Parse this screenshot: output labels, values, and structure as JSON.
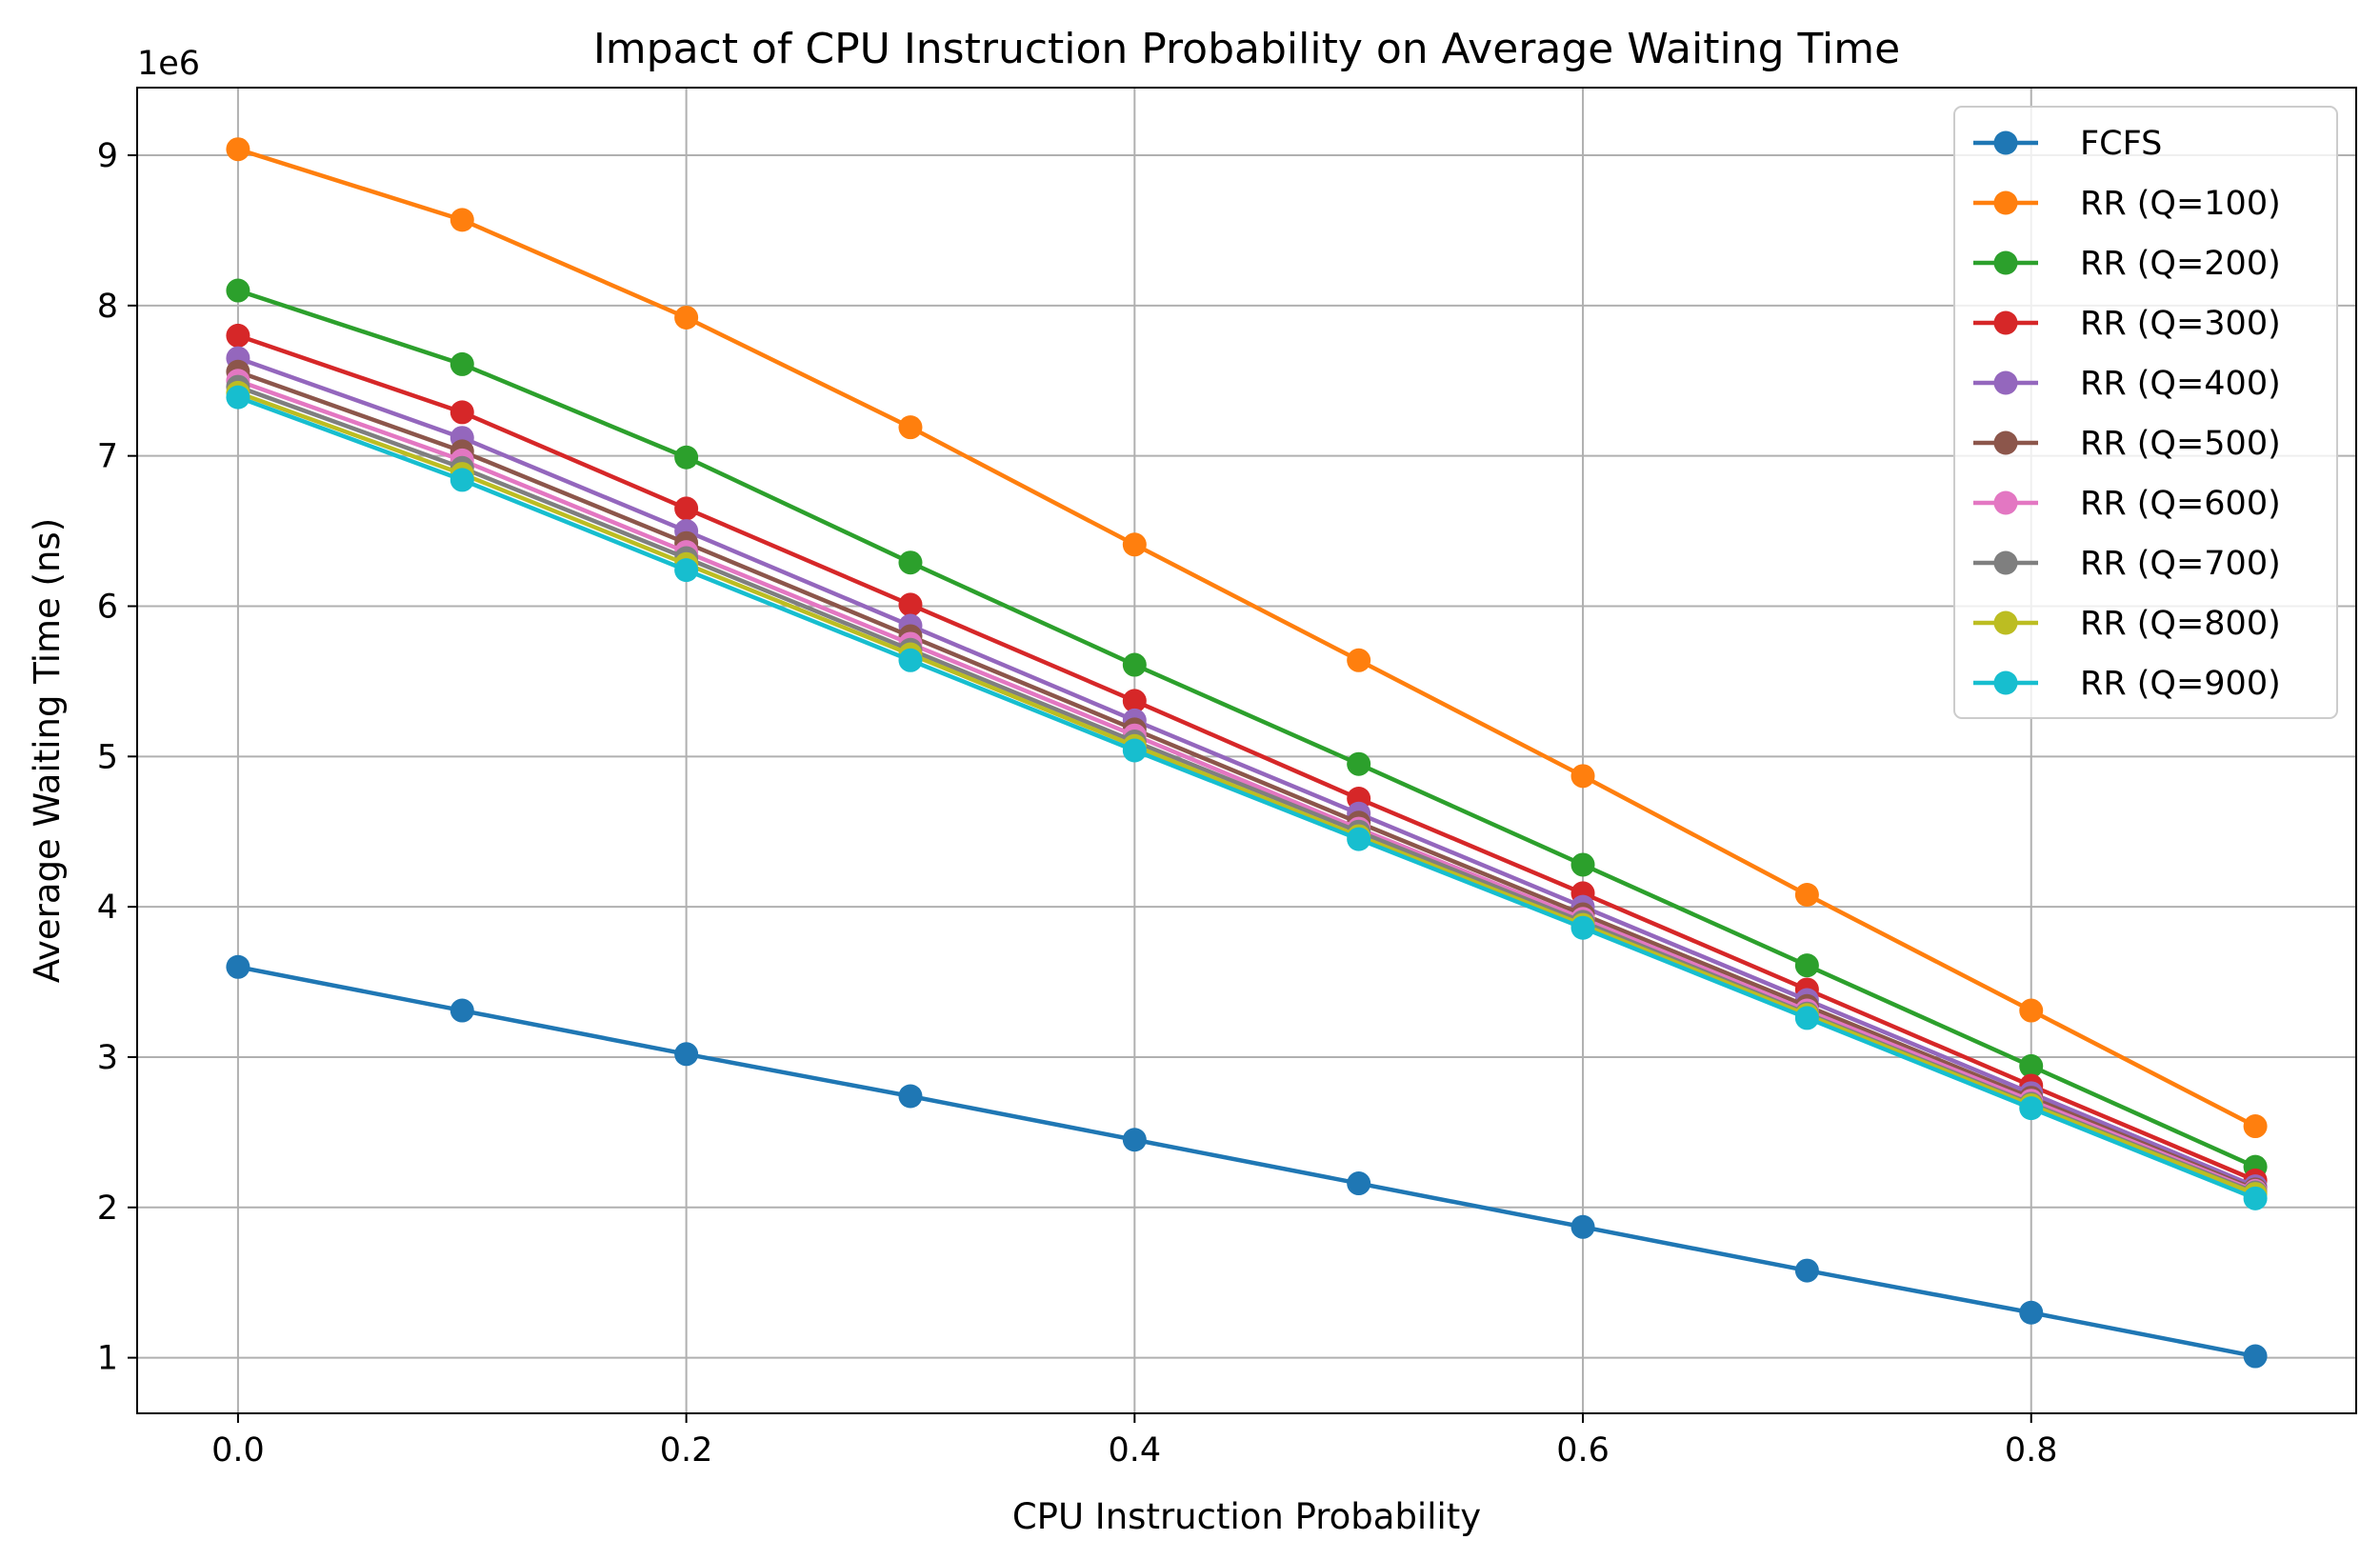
{
  "chart_data": {
    "type": "line",
    "title": "Impact of CPU Instruction Probability on Average Waiting Time",
    "xlabel": "CPU Instruction Probability",
    "ylabel": "Average Waiting Time (ns)",
    "y_offset_label": "1e6",
    "xlim": [
      -0.045,
      0.945
    ],
    "ylim": [
      0.63,
      9.45
    ],
    "x_ticks": [
      0.0,
      0.2,
      0.4,
      0.6,
      0.8
    ],
    "x_tick_labels": [
      "0.0",
      "0.2",
      "0.4",
      "0.6",
      "0.8"
    ],
    "y_ticks": [
      1,
      2,
      3,
      4,
      5,
      6,
      7,
      8,
      9
    ],
    "y_tick_labels": [
      "1",
      "2",
      "3",
      "4",
      "5",
      "6",
      "7",
      "8",
      "9"
    ],
    "grid": true,
    "legend_position": "top-right",
    "x": [
      0.0,
      0.1,
      0.2,
      0.3,
      0.4,
      0.5,
      0.6,
      0.7,
      0.8,
      0.9
    ],
    "series": [
      {
        "name": "FCFS",
        "color": "#1f77b4",
        "values": [
          3.6,
          3.31,
          3.02,
          2.74,
          2.45,
          2.16,
          1.87,
          1.58,
          1.3,
          1.01
        ]
      },
      {
        "name": "RR (Q=100)",
        "color": "#ff7f0e",
        "values": [
          9.04,
          8.57,
          7.92,
          7.19,
          6.41,
          5.64,
          4.87,
          4.08,
          3.31,
          2.54
        ]
      },
      {
        "name": "RR (Q=200)",
        "color": "#2ca02c",
        "values": [
          8.1,
          7.61,
          6.99,
          6.29,
          5.61,
          4.95,
          4.28,
          3.61,
          2.94,
          2.27
        ]
      },
      {
        "name": "RR (Q=300)",
        "color": "#d62728",
        "values": [
          7.8,
          7.29,
          6.65,
          6.01,
          5.37,
          4.72,
          4.09,
          3.45,
          2.81,
          2.18
        ]
      },
      {
        "name": "RR (Q=400)",
        "color": "#9467bd",
        "values": [
          7.65,
          7.12,
          6.5,
          5.87,
          5.24,
          4.62,
          4.0,
          3.38,
          2.76,
          2.14
        ]
      },
      {
        "name": "RR (Q=500)",
        "color": "#8c564b",
        "values": [
          7.56,
          7.03,
          6.42,
          5.8,
          5.18,
          4.56,
          3.95,
          3.34,
          2.73,
          2.12
        ]
      },
      {
        "name": "RR (Q=600)",
        "color": "#e377c2",
        "values": [
          7.5,
          6.97,
          6.36,
          5.75,
          5.14,
          4.52,
          3.92,
          3.31,
          2.71,
          2.11
        ]
      },
      {
        "name": "RR (Q=700)",
        "color": "#7f7f7f",
        "values": [
          7.46,
          6.92,
          6.32,
          5.71,
          5.1,
          4.5,
          3.9,
          3.29,
          2.69,
          2.1
        ]
      },
      {
        "name": "RR (Q=800)",
        "color": "#bcbd22",
        "values": [
          7.42,
          6.88,
          6.28,
          5.68,
          5.07,
          4.47,
          3.88,
          3.28,
          2.68,
          2.09
        ]
      },
      {
        "name": "RR (Q=900)",
        "color": "#17becf",
        "values": [
          7.39,
          6.84,
          6.24,
          5.64,
          5.04,
          4.45,
          3.86,
          3.26,
          2.66,
          2.06
        ]
      }
    ]
  }
}
